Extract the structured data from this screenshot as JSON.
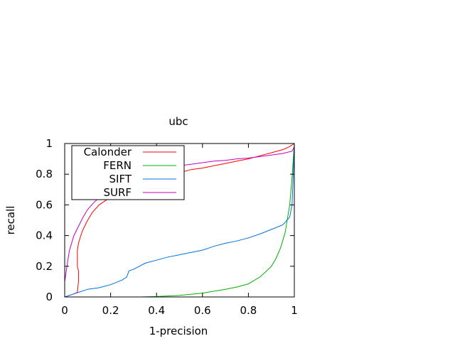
{
  "chart_data": {
    "type": "line",
    "title": "ubc",
    "xlabel": "1-precision",
    "ylabel": "recall",
    "xlim": [
      0,
      1
    ],
    "ylim": [
      0,
      1
    ],
    "x_ticks": [
      0,
      0.2,
      0.4,
      0.6,
      0.8,
      1
    ],
    "y_ticks": [
      0,
      0.2,
      0.4,
      0.6,
      0.8,
      1
    ],
    "x_tick_labels": [
      "0",
      "0.2",
      "0.4",
      "0.6",
      "0.8",
      "1"
    ],
    "y_tick_labels": [
      "0",
      "0.2",
      "0.4",
      "0.6",
      "0.8",
      "1"
    ],
    "grid": false,
    "legend_position": "top-left",
    "series": [
      {
        "name": "Calonder",
        "color": "#ff0000",
        "points": [
          [
            0.0,
            0.0
          ],
          [
            0.02,
            0.01
          ],
          [
            0.04,
            0.02
          ],
          [
            0.055,
            0.03
          ],
          [
            0.06,
            0.1
          ],
          [
            0.06,
            0.17
          ],
          [
            0.055,
            0.2
          ],
          [
            0.055,
            0.3
          ],
          [
            0.06,
            0.35
          ],
          [
            0.07,
            0.4
          ],
          [
            0.08,
            0.44
          ],
          [
            0.1,
            0.5
          ],
          [
            0.12,
            0.55
          ],
          [
            0.15,
            0.6
          ],
          [
            0.2,
            0.65
          ],
          [
            0.25,
            0.69
          ],
          [
            0.3,
            0.72
          ],
          [
            0.35,
            0.75
          ],
          [
            0.4,
            0.77
          ],
          [
            0.45,
            0.79
          ],
          [
            0.5,
            0.81
          ],
          [
            0.55,
            0.83
          ],
          [
            0.6,
            0.84
          ],
          [
            0.65,
            0.855
          ],
          [
            0.7,
            0.87
          ],
          [
            0.75,
            0.885
          ],
          [
            0.8,
            0.9
          ],
          [
            0.85,
            0.92
          ],
          [
            0.9,
            0.94
          ],
          [
            0.95,
            0.96
          ],
          [
            0.98,
            0.98
          ],
          [
            1.0,
            1.0
          ]
        ]
      },
      {
        "name": "FERN",
        "color": "#00b000",
        "points": [
          [
            0.33,
            0.0
          ],
          [
            0.4,
            0.003
          ],
          [
            0.5,
            0.01
          ],
          [
            0.6,
            0.025
          ],
          [
            0.7,
            0.05
          ],
          [
            0.75,
            0.065
          ],
          [
            0.8,
            0.085
          ],
          [
            0.85,
            0.13
          ],
          [
            0.88,
            0.17
          ],
          [
            0.9,
            0.2
          ],
          [
            0.92,
            0.25
          ],
          [
            0.94,
            0.32
          ],
          [
            0.96,
            0.42
          ],
          [
            0.98,
            0.6
          ],
          [
            0.99,
            0.78
          ],
          [
            1.0,
            1.0
          ]
        ]
      },
      {
        "name": "SIFT",
        "color": "#0070e0",
        "points": [
          [
            0.0,
            0.0
          ],
          [
            0.02,
            0.01
          ],
          [
            0.04,
            0.02
          ],
          [
            0.06,
            0.03
          ],
          [
            0.1,
            0.05
          ],
          [
            0.15,
            0.06
          ],
          [
            0.2,
            0.08
          ],
          [
            0.25,
            0.11
          ],
          [
            0.27,
            0.13
          ],
          [
            0.28,
            0.17
          ],
          [
            0.3,
            0.18
          ],
          [
            0.35,
            0.22
          ],
          [
            0.4,
            0.24
          ],
          [
            0.45,
            0.26
          ],
          [
            0.5,
            0.275
          ],
          [
            0.55,
            0.29
          ],
          [
            0.6,
            0.305
          ],
          [
            0.65,
            0.33
          ],
          [
            0.7,
            0.35
          ],
          [
            0.75,
            0.365
          ],
          [
            0.8,
            0.385
          ],
          [
            0.85,
            0.41
          ],
          [
            0.9,
            0.44
          ],
          [
            0.95,
            0.47
          ],
          [
            0.98,
            0.52
          ],
          [
            0.99,
            0.6
          ],
          [
            1.0,
            0.98
          ]
        ]
      },
      {
        "name": "SURF",
        "color": "#c000c0",
        "points": [
          [
            0.0,
            0.0
          ],
          [
            0.0,
            0.1
          ],
          [
            0.01,
            0.2
          ],
          [
            0.02,
            0.3
          ],
          [
            0.04,
            0.4
          ],
          [
            0.06,
            0.46
          ],
          [
            0.08,
            0.52
          ],
          [
            0.1,
            0.57
          ],
          [
            0.13,
            0.62
          ],
          [
            0.16,
            0.66
          ],
          [
            0.2,
            0.7
          ],
          [
            0.25,
            0.74
          ],
          [
            0.3,
            0.77
          ],
          [
            0.35,
            0.8
          ],
          [
            0.4,
            0.82
          ],
          [
            0.45,
            0.84
          ],
          [
            0.5,
            0.855
          ],
          [
            0.55,
            0.865
          ],
          [
            0.6,
            0.875
          ],
          [
            0.65,
            0.885
          ],
          [
            0.7,
            0.89
          ],
          [
            0.75,
            0.9
          ],
          [
            0.8,
            0.905
          ],
          [
            0.85,
            0.915
          ],
          [
            0.9,
            0.925
          ],
          [
            0.95,
            0.935
          ],
          [
            0.99,
            0.95
          ],
          [
            1.0,
            0.98
          ]
        ]
      }
    ]
  }
}
